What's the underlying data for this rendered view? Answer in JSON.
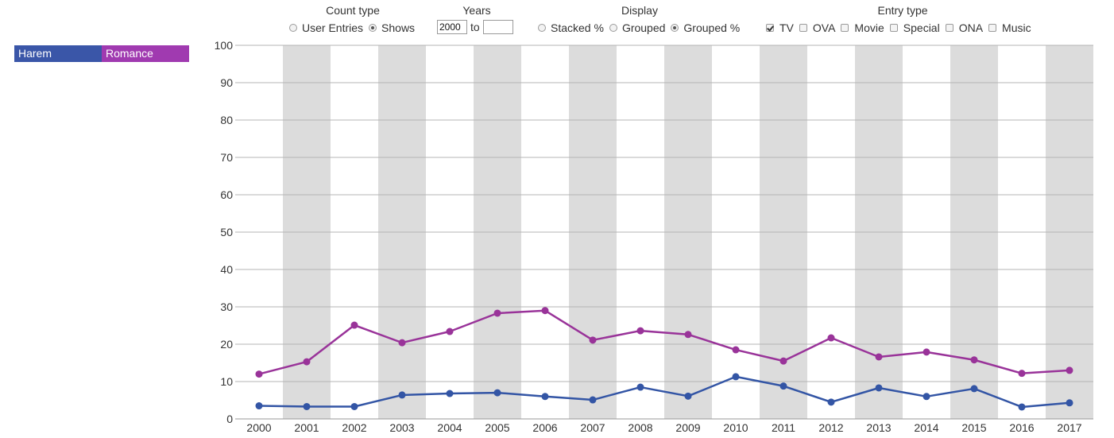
{
  "controls": {
    "count_type": {
      "title": "Count type",
      "options": [
        "User Entries",
        "Shows"
      ],
      "selected": "Shows"
    },
    "years": {
      "title": "Years",
      "from": "2000",
      "to": "",
      "to_label": "to"
    },
    "display": {
      "title": "Display",
      "options": [
        "Stacked %",
        "Grouped",
        "Grouped %"
      ],
      "selected": "Grouped %"
    },
    "entry_type": {
      "title": "Entry type",
      "options": [
        {
          "label": "TV",
          "checked": true
        },
        {
          "label": "OVA",
          "checked": false
        },
        {
          "label": "Movie",
          "checked": false
        },
        {
          "label": "Special",
          "checked": false
        },
        {
          "label": "ONA",
          "checked": false
        },
        {
          "label": "Music",
          "checked": false
        }
      ]
    }
  },
  "legend": [
    {
      "label": "Harem",
      "color": "#3a56a8"
    },
    {
      "label": "Romance",
      "color": "#a03ab0"
    }
  ],
  "chart_data": {
    "type": "line",
    "x": [
      "2000",
      "2001",
      "2002",
      "2003",
      "2004",
      "2005",
      "2006",
      "2007",
      "2008",
      "2009",
      "2010",
      "2011",
      "2012",
      "2013",
      "2014",
      "2015",
      "2016",
      "2017"
    ],
    "ylim": [
      0,
      100
    ],
    "yticks": [
      0,
      10,
      20,
      30,
      40,
      50,
      60,
      70,
      80,
      90,
      100
    ],
    "grid": true,
    "series": [
      {
        "name": "Romance",
        "color": "#993399",
        "values": [
          12.0,
          15.3,
          25.1,
          20.4,
          23.4,
          28.3,
          29.0,
          21.1,
          23.6,
          22.6,
          18.5,
          15.5,
          21.7,
          16.6,
          17.9,
          15.8,
          12.2,
          13.0
        ]
      },
      {
        "name": "Harem",
        "color": "#3355a5",
        "values": [
          3.5,
          3.3,
          3.3,
          6.4,
          6.8,
          7.0,
          6.0,
          5.1,
          8.5,
          6.1,
          11.3,
          8.8,
          4.5,
          8.3,
          6.0,
          8.1,
          3.2,
          4.3
        ]
      }
    ]
  }
}
